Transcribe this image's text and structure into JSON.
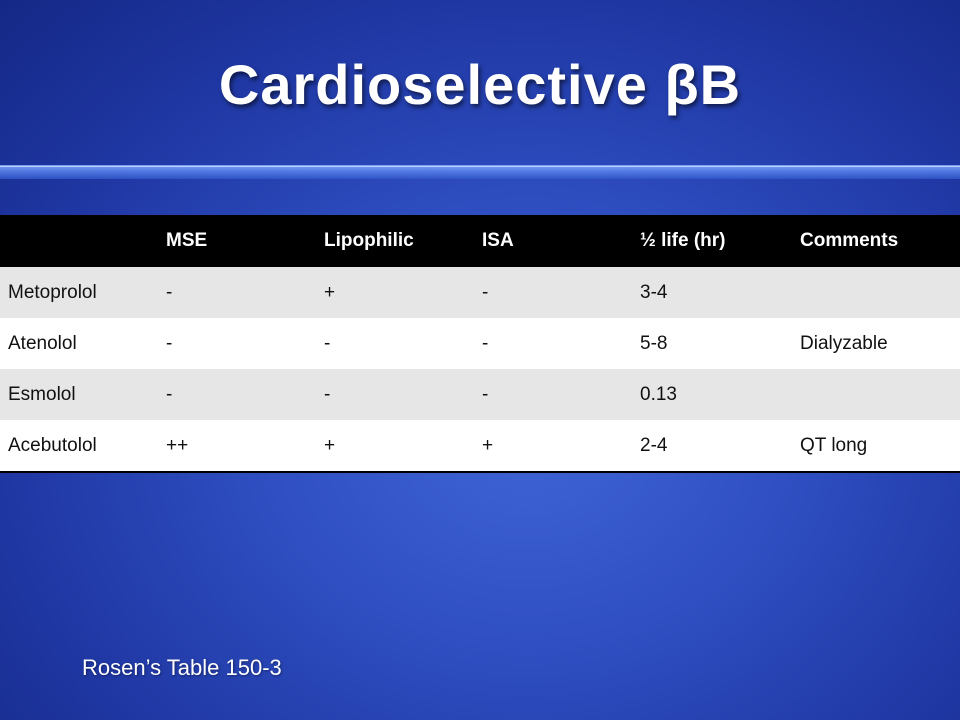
{
  "slide": {
    "title": "Cardioselective βB",
    "source": "Rosen’s Table 150-3"
  },
  "table": {
    "headers": [
      "",
      "MSE",
      "Lipophilic",
      "ISA",
      "½ life (hr)",
      "Comments"
    ],
    "rows": [
      [
        "Metoprolol",
        "-",
        "+",
        "-",
        "3-4",
        ""
      ],
      [
        "Atenolol",
        "-",
        "-",
        "-",
        "5-8",
        "Dialyzable"
      ],
      [
        "Esmolol",
        "-",
        "-",
        "-",
        "0.13",
        ""
      ],
      [
        "Acebutolol",
        "++",
        "+",
        "+",
        "2-4",
        "QT long"
      ]
    ]
  }
}
